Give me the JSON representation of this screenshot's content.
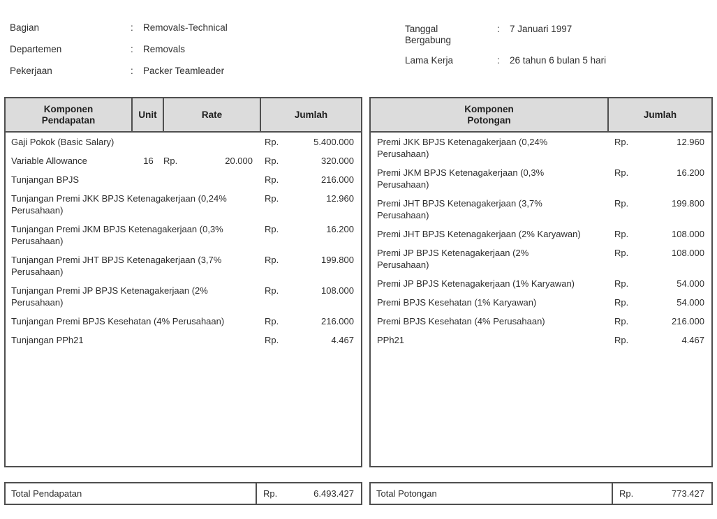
{
  "info": {
    "separator": ":",
    "left": {
      "bagian": {
        "label": "Bagian",
        "value": "Removals-Technical"
      },
      "departemen": {
        "label": "Departemen",
        "value": "Removals"
      },
      "pekerjaan": {
        "label": "Pekerjaan",
        "value": "Packer Teamleader"
      }
    },
    "right": {
      "tanggal_bergabung": {
        "label": "Tanggal\nBergabung",
        "value": "7 Januari 1997"
      },
      "lama_kerja": {
        "label": "Lama Kerja",
        "value": "26 tahun 6 bulan 5 hari"
      }
    }
  },
  "earnings": {
    "currency": "Rp.",
    "headers": {
      "component": "Komponen\nPendapatan",
      "unit": "Unit",
      "rate": "Rate",
      "amount": "Jumlah"
    },
    "rows": [
      {
        "component": "Gaji Pokok (Basic Salary)",
        "amount": "5.400.000"
      },
      {
        "component": "Variable Allowance",
        "unit": "16",
        "rate_rp": "Rp.",
        "rate": "20.000",
        "amount": "320.000"
      },
      {
        "component": "Tunjangan BPJS",
        "amount": "216.000"
      },
      {
        "component": "Tunjangan Premi JKK BPJS Ketenagakerjaan (0,24%\nPerusahaan)",
        "amount": "12.960"
      },
      {
        "component": "Tunjangan Premi JKM BPJS Ketenagakerjaan (0,3%\nPerusahaan)",
        "amount": "16.200"
      },
      {
        "component": "Tunjangan Premi JHT BPJS Ketenagakerjaan (3,7%\nPerusahaan)",
        "amount": "199.800"
      },
      {
        "component": "Tunjangan Premi JP BPJS Ketenagakerjaan (2%\nPerusahaan)",
        "amount": "108.000"
      },
      {
        "component": "Tunjangan Premi BPJS Kesehatan (4% Perusahaan)",
        "amount": "216.000"
      },
      {
        "component": "Tunjangan PPh21",
        "amount": "4.467"
      }
    ],
    "total": {
      "label": "Total Pendapatan",
      "amount": "6.493.427"
    }
  },
  "deductions": {
    "currency": "Rp.",
    "headers": {
      "component": "Komponen\nPotongan",
      "amount": "Jumlah"
    },
    "rows": [
      {
        "component": "Premi JKK BPJS Ketenagakerjaan (0,24%\nPerusahaan)",
        "amount": "12.960"
      },
      {
        "component": "Premi JKM BPJS Ketenagakerjaan (0,3%\nPerusahaan)",
        "amount": "16.200"
      },
      {
        "component": "Premi JHT BPJS Ketenagakerjaan (3,7%\nPerusahaan)",
        "amount": "199.800"
      },
      {
        "component": "Premi JHT BPJS Ketenagakerjaan (2% Karyawan)",
        "amount": "108.000"
      },
      {
        "component": "Premi JP BPJS Ketenagakerjaan (2%\nPerusahaan)",
        "amount": "108.000"
      },
      {
        "component": "Premi JP BPJS Ketenagakerjaan (1% Karyawan)",
        "amount": "54.000"
      },
      {
        "component": "Premi BPJS Kesehatan (1% Karyawan)",
        "amount": "54.000"
      },
      {
        "component": "Premi BPJS Kesehatan (4% Perusahaan)",
        "amount": "216.000"
      },
      {
        "component": "PPh21",
        "amount": "4.467"
      }
    ],
    "total": {
      "label": "Total Potongan",
      "amount": "773.427"
    }
  },
  "colors": {
    "header_bg": "#dcdcdc",
    "border": "#4f4f4f",
    "text": "#2e2e2e"
  }
}
